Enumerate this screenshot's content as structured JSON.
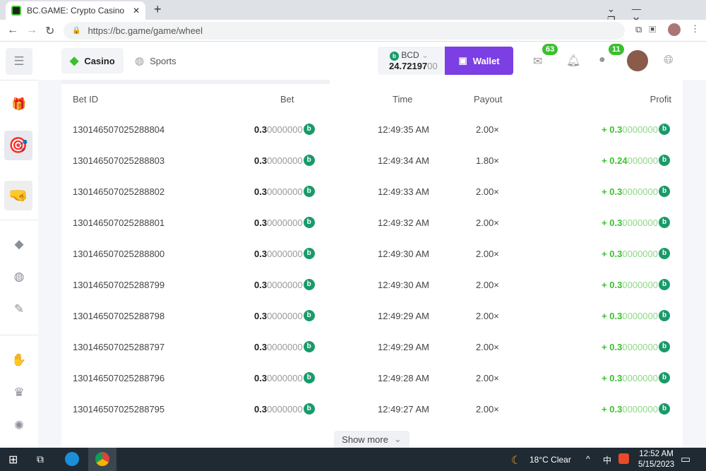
{
  "browser": {
    "tab_title": "BC.GAME: Crypto Casino Games",
    "url": "https://bc.game/game/wheel"
  },
  "header": {
    "casino": "Casino",
    "sports": "Sports",
    "currency": "BCD",
    "balance_main": "24.72197",
    "balance_tail": "00",
    "wallet": "Wallet",
    "mail_count": "63",
    "chat_count": "11"
  },
  "table": {
    "columns": [
      "Bet ID",
      "Bet",
      "Time",
      "Payout",
      "Profit"
    ],
    "rows": [
      {
        "id": "130146507025288804",
        "bet_b": "0.3",
        "bet_g": "0000000",
        "time": "12:49:35 AM",
        "payout": "2.00×",
        "profit_b": "+ 0.3",
        "profit_g": "0000000"
      },
      {
        "id": "130146507025288803",
        "bet_b": "0.3",
        "bet_g": "0000000",
        "time": "12:49:34 AM",
        "payout": "1.80×",
        "profit_b": "+ 0.24",
        "profit_g": "000000"
      },
      {
        "id": "130146507025288802",
        "bet_b": "0.3",
        "bet_g": "0000000",
        "time": "12:49:33 AM",
        "payout": "2.00×",
        "profit_b": "+ 0.3",
        "profit_g": "0000000"
      },
      {
        "id": "130146507025288801",
        "bet_b": "0.3",
        "bet_g": "0000000",
        "time": "12:49:32 AM",
        "payout": "2.00×",
        "profit_b": "+ 0.3",
        "profit_g": "0000000"
      },
      {
        "id": "130146507025288800",
        "bet_b": "0.3",
        "bet_g": "0000000",
        "time": "12:49:30 AM",
        "payout": "2.00×",
        "profit_b": "+ 0.3",
        "profit_g": "0000000"
      },
      {
        "id": "130146507025288799",
        "bet_b": "0.3",
        "bet_g": "0000000",
        "time": "12:49:30 AM",
        "payout": "2.00×",
        "profit_b": "+ 0.3",
        "profit_g": "0000000"
      },
      {
        "id": "130146507025288798",
        "bet_b": "0.3",
        "bet_g": "0000000",
        "time": "12:49:29 AM",
        "payout": "2.00×",
        "profit_b": "+ 0.3",
        "profit_g": "0000000"
      },
      {
        "id": "130146507025288797",
        "bet_b": "0.3",
        "bet_g": "0000000",
        "time": "12:49:29 AM",
        "payout": "2.00×",
        "profit_b": "+ 0.3",
        "profit_g": "0000000"
      },
      {
        "id": "130146507025288796",
        "bet_b": "0.3",
        "bet_g": "0000000",
        "time": "12:49:28 AM",
        "payout": "2.00×",
        "profit_b": "+ 0.3",
        "profit_g": "0000000"
      },
      {
        "id": "130146507025288795",
        "bet_b": "0.3",
        "bet_g": "0000000",
        "time": "12:49:27 AM",
        "payout": "2.00×",
        "profit_b": "+ 0.3",
        "profit_g": "0000000"
      }
    ],
    "show_more": "Show more"
  },
  "taskbar": {
    "weather": "18°C  Clear",
    "ime": "中",
    "time": "12:52 AM",
    "date": "5/15/2023"
  },
  "colors": {
    "accent": "#3bbf2e",
    "wallet": "#7b3fe4",
    "coin": "#1a9a6a"
  }
}
